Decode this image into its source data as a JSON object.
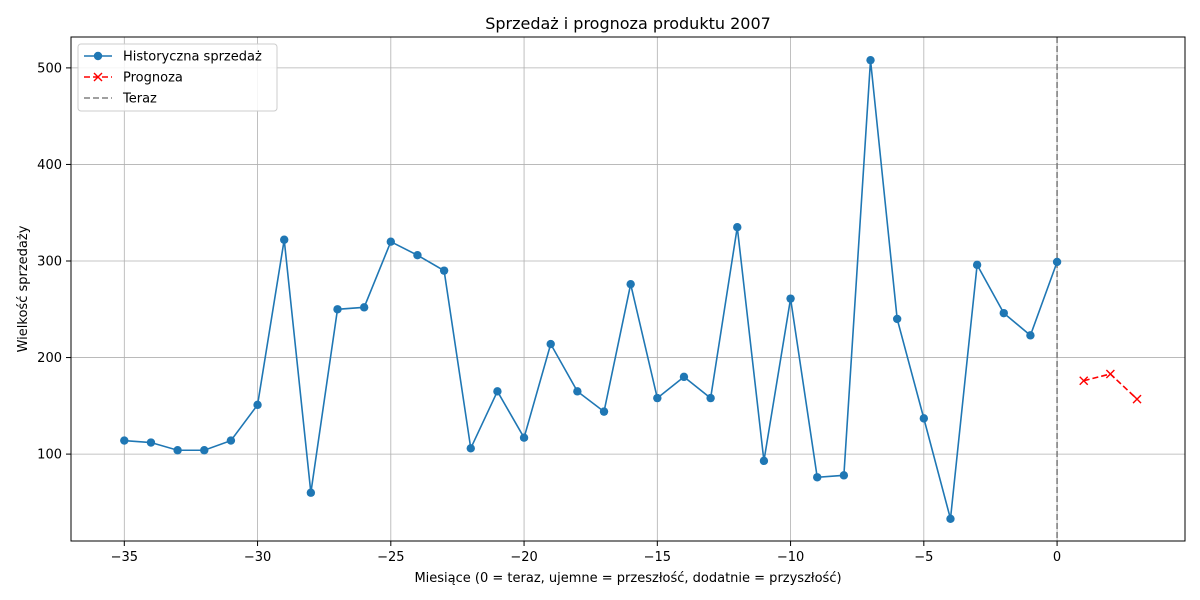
{
  "chart_data": {
    "type": "line",
    "title": "Sprzedaż i prognoza produktu 2007",
    "xlabel": "Miesiące (0 = teraz, ujemne = przeszłość, dodatnie = przyszłość)",
    "ylabel": "Wielkość sprzedaży",
    "xlim": [
      -37,
      4.8
    ],
    "ylim": [
      10,
      532
    ],
    "x_ticks": [
      -35,
      -30,
      -25,
      -20,
      -15,
      -10,
      -5,
      0
    ],
    "x_tick_labels": [
      "−35",
      "−30",
      "−25",
      "−20",
      "−15",
      "−10",
      "−5",
      "0"
    ],
    "y_ticks": [
      100,
      200,
      300,
      400,
      500
    ],
    "y_tick_labels": [
      "100",
      "200",
      "300",
      "400",
      "500"
    ],
    "grid": true,
    "legend_position": "top-left",
    "series": [
      {
        "name": "Historyczna sprzedaż",
        "color": "#1f77b4",
        "line_style": "solid",
        "marker": "circle",
        "x": [
          -35,
          -34,
          -33,
          -32,
          -31,
          -30,
          -29,
          -28,
          -27,
          -26,
          -25,
          -24,
          -23,
          -22,
          -21,
          -20,
          -19,
          -18,
          -17,
          -16,
          -15,
          -14,
          -13,
          -12,
          -11,
          -10,
          -9,
          -8,
          -7,
          -6,
          -5,
          -4,
          -3,
          -2,
          -1,
          0
        ],
        "values": [
          114,
          112,
          104,
          104,
          114,
          151,
          322,
          60,
          250,
          252,
          320,
          306,
          290,
          106,
          165,
          117,
          214,
          165,
          144,
          276,
          158,
          180,
          158,
          335,
          93,
          261,
          76,
          78,
          508,
          240,
          137,
          33,
          296,
          246,
          223,
          299
        ]
      },
      {
        "name": "Prognoza",
        "color": "#ff0000",
        "line_style": "dashed",
        "marker": "x",
        "x": [
          1,
          2,
          3
        ],
        "values": [
          176,
          183,
          157
        ]
      }
    ],
    "reference_lines": [
      {
        "name": "Teraz",
        "orientation": "vertical",
        "x": 0,
        "color": "#808080",
        "line_style": "dashed"
      }
    ]
  }
}
